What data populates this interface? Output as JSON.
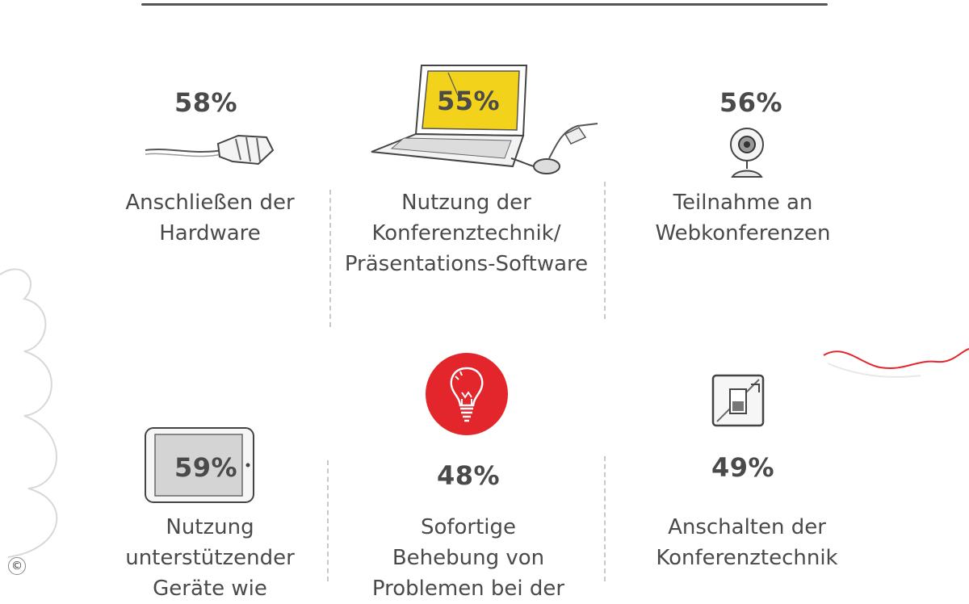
{
  "items": [
    {
      "percent": "58%",
      "label": "Anschließen der\nHardware",
      "icon": "cable-plug-icon"
    },
    {
      "percent": "55%",
      "label": "Nutzung der\nKonferenztechnik/\nPräsentations-Software",
      "icon": "laptop-icon"
    },
    {
      "percent": "56%",
      "label": "Teilnahme an\nWebkonferenzen",
      "icon": "webcam-icon"
    },
    {
      "percent": "59%",
      "label": "Nutzung\nunterstützender\nGeräte wie",
      "icon": "tablet-icon"
    },
    {
      "percent": "48%",
      "label": "Sofortige\nBehebung von\nProblemen bei der",
      "icon": "lightbulb-icon"
    },
    {
      "percent": "49%",
      "label": "Anschalten der\nKonferenztechnik",
      "icon": "power-switch-icon"
    }
  ],
  "copyright_symbol": "©",
  "colors": {
    "accent_red": "#e3262c",
    "screen_yellow": "#f2d21a",
    "text_gray": "#4a4a4a"
  }
}
